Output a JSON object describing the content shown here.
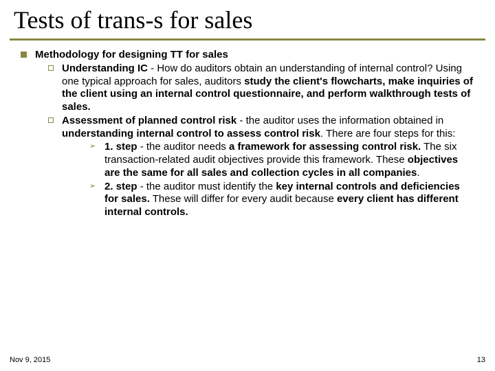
{
  "title": "Tests of trans-s for sales",
  "accent_color": "#888844",
  "title_fontsize": 36,
  "body_fontsize": 15,
  "lvl1": {
    "bullet_color": "#888844",
    "text": "Methodology for designing TT for sales"
  },
  "lvl2_items": [
    {
      "bold1": "Understanding IC",
      "plain1": " - How do auditors obtain an understanding of internal control? Using one typical approach for sales, auditors ",
      "bold2": "study the client's flowcharts, make inquiries of the client using an internal control questionnaire, and perform walkthrough tests of sales.",
      "plain2": ""
    },
    {
      "bold1": "Assessment of planned control risk",
      "plain1": " - the auditor uses the information obtained in ",
      "bold2": "understanding internal control to assess control risk",
      "plain2": ". There are four steps for this:"
    }
  ],
  "lvl3_items": [
    {
      "bold1": "1. step",
      "plain1": " - the auditor needs ",
      "bold2": "a framework for assessing control risk.",
      "plain2": " The six transaction-related audit objectives provide this framework. These ",
      "bold3": "objectives are the same for all sales and collection cycles in all companies",
      "plain3": "."
    },
    {
      "bold1": "2. step",
      "plain1": " - the auditor must identify the ",
      "bold2": "key internal controls and deficiencies for sales.",
      "plain2": " These will differ for every audit because ",
      "bold3": "every client has different internal controls.",
      "plain3": ""
    }
  ],
  "footer": {
    "date": "Nov 9, 2015",
    "page": "13"
  }
}
